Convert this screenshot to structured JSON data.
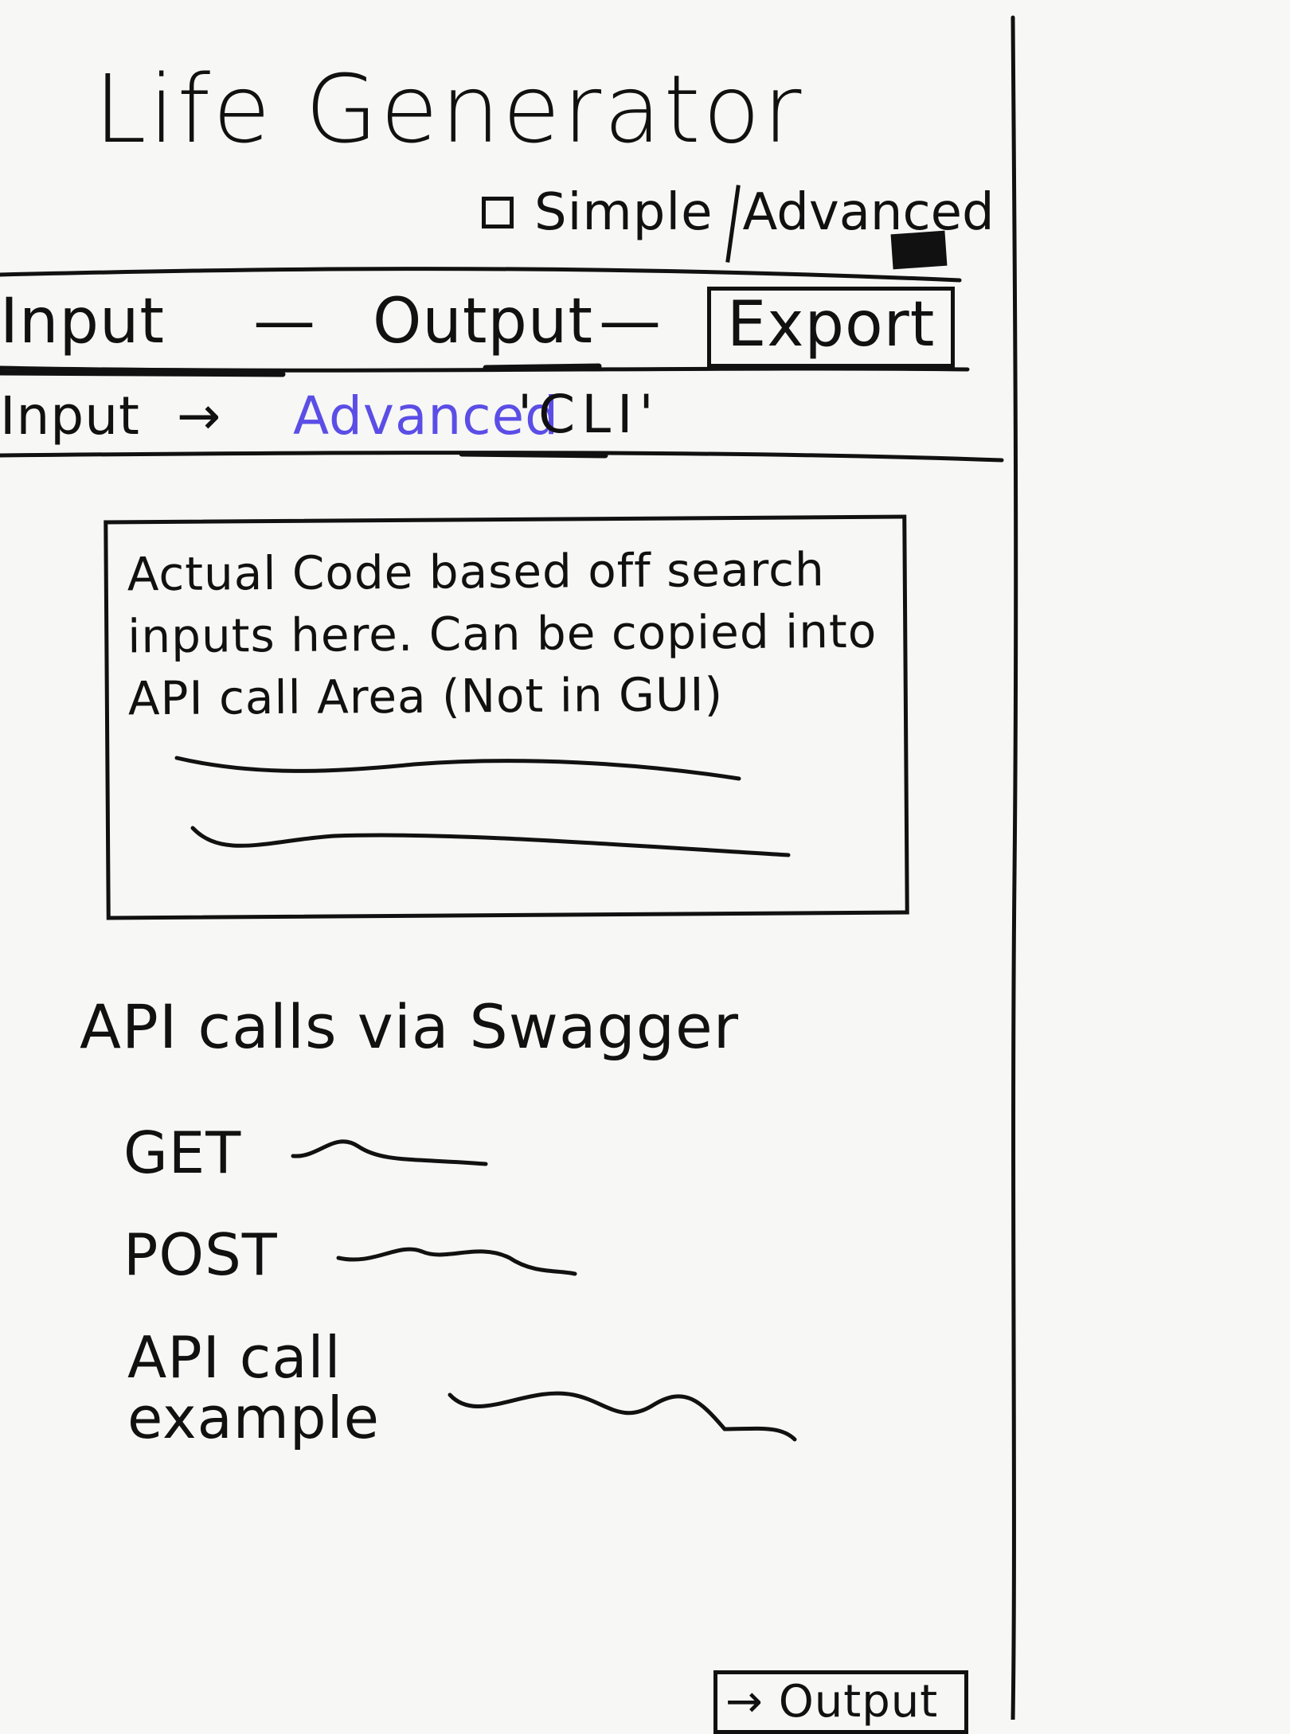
{
  "app": {
    "title": "Life Generator"
  },
  "mode": {
    "simple_label": "Simple",
    "advanced_label": "Advanced",
    "selected": "Advanced"
  },
  "nav": {
    "input_label": "Input",
    "separator": "—",
    "output_label": "Output",
    "export_label": "Export"
  },
  "breadcrumb": {
    "input": "Input",
    "arrow": "→",
    "advanced": "Advanced",
    "cli": "'CLI'"
  },
  "code_box": {
    "text": "Actual Code based off search inputs here. Can be copied into API call Area (Not in GUI)"
  },
  "api": {
    "heading": "API calls via Swagger",
    "get_label": "GET",
    "post_label": "POST",
    "example_label": "API call example"
  },
  "footer": {
    "output_button": "→ Output"
  },
  "colors": {
    "ink": "#111111",
    "accent": "#5b4ee6",
    "paper": "#f7f7f5"
  }
}
